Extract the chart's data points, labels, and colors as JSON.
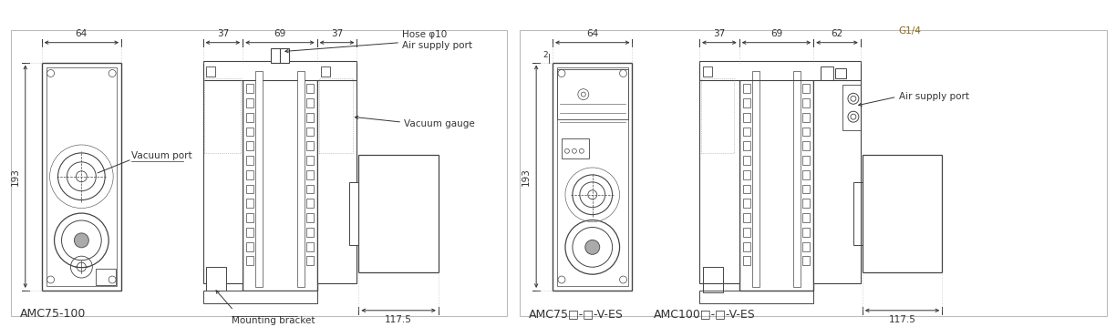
{
  "bg_color": "#ffffff",
  "lc": "#444444",
  "dc": "#333333",
  "tc": "#333333",
  "panel1_model": "AMC75-100",
  "panel2_model1": "AMC75□-□-V-ES",
  "panel2_model2": "AMC100□-□-V-ES",
  "lbl_vacuum_port": "Vacuum port",
  "lbl_hose": "Hose φ10",
  "lbl_air_supply": "Air supply port",
  "lbl_vacuum_gauge": "Vacuum gauge",
  "lbl_mounting": "Mounting bracket",
  "lbl_g14": "G1/4",
  "dim_64": "64",
  "dim_193": "193",
  "dim_37a": "37",
  "dim_69": "69",
  "dim_37b": "37",
  "dim_62": "62",
  "dim_117_5": "117.5",
  "dim_2": "2",
  "fs_dim": 7.5,
  "fs_lbl": 7.5,
  "fs_model": 9.0
}
